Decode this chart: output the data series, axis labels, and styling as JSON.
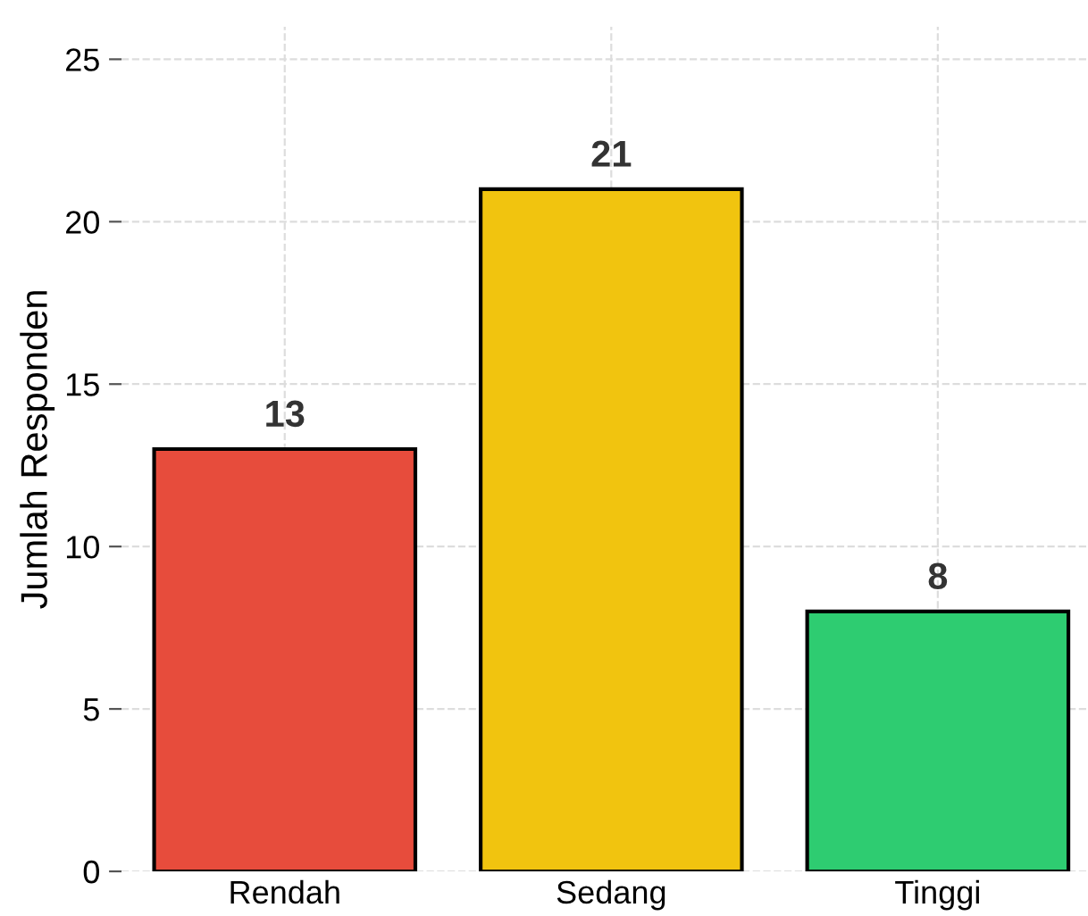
{
  "chart_data": {
    "type": "bar",
    "ylabel": "Jumlah Responden",
    "categories": [
      "Rendah",
      "Sedang",
      "Tinggi"
    ],
    "values": [
      13,
      21,
      8
    ],
    "colors": [
      "#e74c3c",
      "#f1c40f",
      "#2ecc71"
    ],
    "ylim": [
      0,
      26
    ],
    "yticks": [
      0,
      5,
      10,
      15,
      20,
      25
    ],
    "grid": true,
    "data_labels": true
  }
}
